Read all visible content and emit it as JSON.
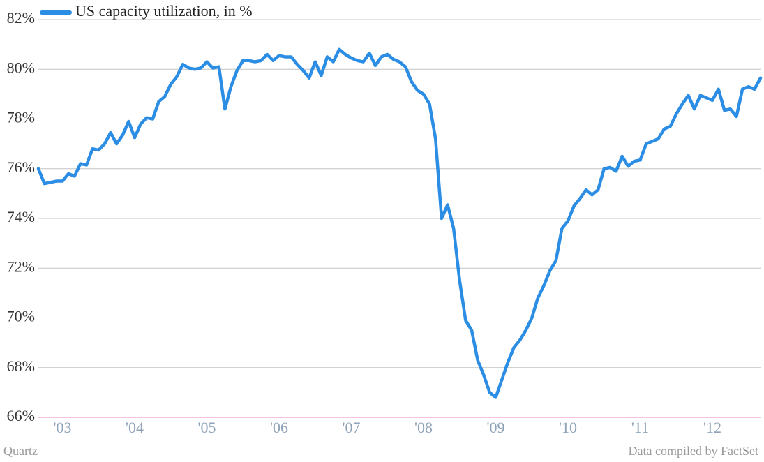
{
  "chart_data": {
    "type": "line",
    "series": [
      {
        "name": "US capacity utilization, in %",
        "color": "#2b8de3",
        "values": [
          76.0,
          75.4,
          75.45,
          75.5,
          75.5,
          75.8,
          75.7,
          76.2,
          76.15,
          76.8,
          76.75,
          77.0,
          77.45,
          77.0,
          77.35,
          77.9,
          77.25,
          77.8,
          78.05,
          78.0,
          78.7,
          78.9,
          79.4,
          79.7,
          80.2,
          80.05,
          80.0,
          80.05,
          80.3,
          80.05,
          80.1,
          78.4,
          79.3,
          79.95,
          80.35,
          80.35,
          80.3,
          80.35,
          80.6,
          80.35,
          80.55,
          80.5,
          80.5,
          80.2,
          79.95,
          79.65,
          80.3,
          79.75,
          80.5,
          80.3,
          80.8,
          80.6,
          80.45,
          80.35,
          80.3,
          80.65,
          80.15,
          80.5,
          80.6,
          80.4,
          80.3,
          80.1,
          79.5,
          79.15,
          79.0,
          78.6,
          77.2,
          74.0,
          74.55,
          73.6,
          71.5,
          69.9,
          69.5,
          68.3,
          67.7,
          67.0,
          66.8,
          67.5,
          68.2,
          68.8,
          69.1,
          69.5,
          70.0,
          70.8,
          71.3,
          71.9,
          72.3,
          73.6,
          73.9,
          74.5,
          74.8,
          75.15,
          74.95,
          75.15,
          76.0,
          76.05,
          75.9,
          76.5,
          76.1,
          76.3,
          76.35,
          77.0,
          77.1,
          77.2,
          77.6,
          77.7,
          78.2,
          78.6,
          78.95,
          78.4,
          78.95,
          78.85,
          78.75,
          79.2,
          78.35,
          78.4,
          78.1,
          79.2,
          79.3,
          79.2,
          79.65
        ]
      }
    ],
    "categories": [
      null,
      null,
      null,
      null,
      "'03",
      null,
      null,
      null,
      null,
      null,
      null,
      null,
      null,
      null,
      null,
      null,
      "'04",
      null,
      null,
      null,
      null,
      null,
      null,
      null,
      null,
      null,
      null,
      null,
      "'05",
      null,
      null,
      null,
      null,
      null,
      null,
      null,
      null,
      null,
      null,
      null,
      "'06",
      null,
      null,
      null,
      null,
      null,
      null,
      null,
      null,
      null,
      null,
      null,
      "'07",
      null,
      null,
      null,
      null,
      null,
      null,
      null,
      null,
      null,
      null,
      null,
      "'08",
      null,
      null,
      null,
      null,
      null,
      null,
      null,
      null,
      null,
      null,
      null,
      "'09",
      null,
      null,
      null,
      null,
      null,
      null,
      null,
      null,
      null,
      null,
      null,
      "'10",
      null,
      null,
      null,
      null,
      null,
      null,
      null,
      null,
      null,
      null,
      null,
      "'11",
      null,
      null,
      null,
      null,
      null,
      null,
      null,
      null,
      null,
      null,
      null,
      "'12",
      null,
      null,
      null,
      null,
      null,
      null,
      null,
      null
    ],
    "ylim": [
      66,
      82
    ],
    "yticks": [
      {
        "value": 66,
        "label": "66%"
      },
      {
        "value": 68,
        "label": "68%"
      },
      {
        "value": 70,
        "label": "70%"
      },
      {
        "value": 72,
        "label": "72%"
      },
      {
        "value": 74,
        "label": "74%"
      },
      {
        "value": 76,
        "label": "76%"
      },
      {
        "value": 78,
        "label": "78%"
      },
      {
        "value": 80,
        "label": "80%"
      },
      {
        "value": 82,
        "label": "82%"
      }
    ],
    "grid": true,
    "credit": "Quartz",
    "source": "Data compiled by FactSet"
  }
}
